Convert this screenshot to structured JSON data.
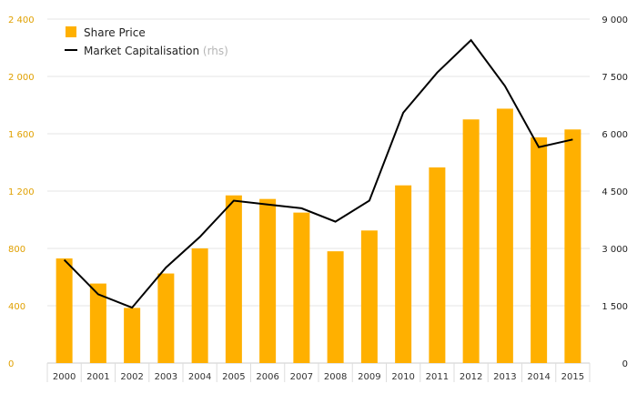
{
  "chart_data": {
    "type": "bar",
    "categories": [
      "2000",
      "2001",
      "2002",
      "2003",
      "2004",
      "2005",
      "2006",
      "2007",
      "2008",
      "2009",
      "2010",
      "2011",
      "2012",
      "2013",
      "2014",
      "2015"
    ],
    "series": [
      {
        "name": "Share Price",
        "type": "bar",
        "axis": "left",
        "color": "#ffb000",
        "values": [
          730,
          555,
          385,
          625,
          800,
          1170,
          1145,
          1050,
          780,
          925,
          1240,
          1365,
          1700,
          1775,
          1575,
          1630
        ]
      },
      {
        "name": "Market Capitalisation",
        "name_suffix": "(rhs)",
        "type": "line",
        "axis": "right",
        "color": "#000000",
        "values": [
          2700,
          1800,
          1450,
          2500,
          3300,
          4250,
          4150,
          4050,
          3700,
          4250,
          6550,
          7600,
          8450,
          7250,
          5650,
          5850
        ]
      }
    ],
    "y_left": {
      "min": 0,
      "max": 2400,
      "ticks": [
        0,
        400,
        800,
        1200,
        1600,
        2000,
        2400
      ],
      "tick_labels": [
        "0",
        "400",
        "800",
        "1 200",
        "1 600",
        "2 000",
        "2 400"
      ],
      "color": "#e0a000"
    },
    "y_right": {
      "min": 0,
      "max": 9000,
      "ticks": [
        0,
        1500,
        3000,
        4500,
        6000,
        7500,
        9000
      ],
      "tick_labels": [
        "0",
        "1 500",
        "3 000",
        "4 500",
        "6 000",
        "7 500",
        "9 000"
      ],
      "color": "#222222"
    },
    "grid": true,
    "legend_position": "top-left",
    "title": "",
    "xlabel": "",
    "ylabel": ""
  }
}
